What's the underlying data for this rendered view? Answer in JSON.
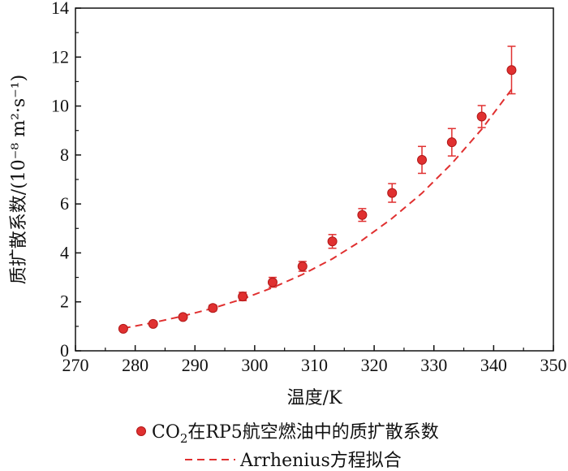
{
  "chart_data": {
    "type": "scatter",
    "title": "",
    "xlabel": "温度/K",
    "ylabel": "质扩散系数/(10⁻⁸ m²·s⁻¹)",
    "xlim": [
      270,
      350
    ],
    "ylim": [
      0,
      14
    ],
    "xticks": [
      270,
      280,
      290,
      300,
      310,
      320,
      330,
      340,
      350
    ],
    "yticks": [
      0,
      2,
      4,
      6,
      8,
      10,
      12,
      14
    ],
    "grid": false,
    "legend_position": "bottom-outside",
    "series": [
      {
        "name": "CO₂在RP5航空燃油中的质扩散系数",
        "kind": "scatter-errorbar",
        "color": "#e03030",
        "x": [
          278,
          283,
          288,
          293,
          298,
          303,
          308,
          313,
          318,
          323,
          328,
          333,
          338,
          343
        ],
        "y": [
          0.9,
          1.1,
          1.38,
          1.75,
          2.22,
          2.8,
          3.45,
          4.47,
          5.55,
          6.45,
          7.8,
          8.52,
          9.57,
          11.47
        ],
        "yerr": [
          0.05,
          0.07,
          0.08,
          0.12,
          0.17,
          0.2,
          0.2,
          0.28,
          0.26,
          0.38,
          0.55,
          0.56,
          0.45,
          0.97
        ]
      },
      {
        "name": "Arrhenius方程拟合",
        "kind": "fit-line",
        "style": "dashed",
        "color": "#e03030",
        "x": [
          278,
          283,
          288,
          293,
          298,
          303,
          308,
          313,
          318,
          323,
          328,
          333,
          338,
          343
        ],
        "y": [
          0.92,
          1.15,
          1.42,
          1.74,
          2.12,
          2.58,
          3.12,
          3.76,
          4.52,
          5.41,
          6.44,
          7.65,
          9.05,
          10.68
        ]
      }
    ],
    "legend": [
      {
        "label_pre": "CO",
        "label_sub": "2",
        "label_post": "在RP5航空燃油中的质扩散系数"
      },
      {
        "label": "Arrhenius方程拟合"
      }
    ]
  }
}
